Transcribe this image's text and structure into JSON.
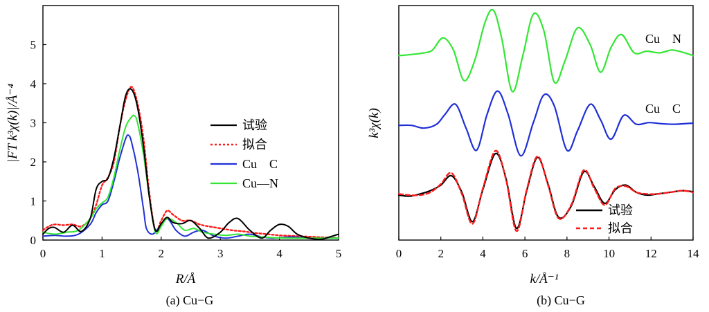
{
  "chart_data": [
    {
      "type": "line",
      "caption": "(a) Cu−G",
      "xlabel": "R/Å",
      "ylabel": "|FT k³χ(k)|/Å⁻⁴",
      "xlim": [
        0,
        5
      ],
      "ylim": [
        0,
        6
      ],
      "xticks": [
        0,
        1,
        2,
        3,
        4,
        5
      ],
      "yticks": [
        0,
        1,
        2,
        3,
        4,
        5
      ],
      "grid": false,
      "legend_position": "center-right",
      "series": [
        {
          "name": "试验",
          "color": "#000000",
          "dash": "solid",
          "x": [
            0.0,
            0.1,
            0.2,
            0.35,
            0.5,
            0.65,
            0.8,
            0.9,
            1.0,
            1.1,
            1.2,
            1.3,
            1.4,
            1.5,
            1.6,
            1.7,
            1.8,
            1.9,
            2.0,
            2.1,
            2.2,
            2.35,
            2.5,
            2.65,
            2.8,
            3.0,
            3.15,
            3.3,
            3.5,
            3.7,
            3.85,
            4.0,
            4.15,
            4.3,
            4.5,
            4.7,
            4.85,
            5.0
          ],
          "y": [
            0.15,
            0.3,
            0.32,
            0.2,
            0.38,
            0.22,
            0.55,
            1.3,
            1.5,
            1.58,
            2.1,
            2.9,
            3.7,
            3.85,
            3.4,
            2.4,
            1.1,
            0.25,
            0.42,
            0.58,
            0.45,
            0.42,
            0.5,
            0.3,
            0.05,
            0.2,
            0.45,
            0.55,
            0.25,
            0.05,
            0.25,
            0.4,
            0.35,
            0.15,
            0.05,
            0.02,
            0.08,
            0.15
          ]
        },
        {
          "name": "拟合",
          "color": "#ff1a1a",
          "dash": "dotted",
          "x": [
            0.0,
            0.1,
            0.2,
            0.35,
            0.5,
            0.65,
            0.8,
            0.9,
            1.0,
            1.1,
            1.2,
            1.3,
            1.4,
            1.5,
            1.6,
            1.7,
            1.8,
            1.9,
            2.0,
            2.1,
            2.2,
            2.35,
            2.5,
            2.65,
            2.8,
            3.0,
            3.2,
            3.4,
            3.6,
            3.8,
            4.0,
            4.3,
            4.6,
            5.0
          ],
          "y": [
            0.25,
            0.35,
            0.4,
            0.38,
            0.4,
            0.35,
            0.55,
            0.9,
            1.4,
            1.6,
            2.0,
            2.9,
            3.6,
            3.92,
            3.5,
            2.6,
            1.2,
            0.25,
            0.5,
            0.75,
            0.65,
            0.5,
            0.5,
            0.4,
            0.35,
            0.3,
            0.25,
            0.22,
            0.18,
            0.15,
            0.12,
            0.1,
            0.08,
            0.05
          ]
        },
        {
          "name": "Cu　C",
          "color": "#1f2fd6",
          "dash": "solid",
          "x": [
            0.0,
            0.2,
            0.4,
            0.6,
            0.8,
            0.9,
            1.0,
            1.1,
            1.2,
            1.3,
            1.4,
            1.45,
            1.5,
            1.6,
            1.7,
            1.75,
            1.85,
            1.95,
            2.1,
            2.25,
            2.4,
            2.55,
            2.7,
            2.9,
            3.1,
            3.3,
            3.5,
            3.7,
            3.9,
            4.2,
            4.5,
            5.0
          ],
          "y": [
            0.1,
            0.12,
            0.1,
            0.15,
            0.4,
            0.7,
            0.9,
            1.0,
            1.5,
            2.1,
            2.6,
            2.68,
            2.5,
            1.8,
            0.8,
            0.3,
            0.15,
            0.3,
            0.55,
            0.25,
            0.1,
            0.2,
            0.25,
            0.1,
            0.05,
            0.1,
            0.15,
            0.08,
            0.05,
            0.08,
            0.05,
            0.05
          ]
        },
        {
          "name": "Cu—N",
          "color": "#33e633",
          "dash": "solid",
          "x": [
            0.0,
            0.2,
            0.4,
            0.6,
            0.8,
            0.9,
            1.0,
            1.1,
            1.2,
            1.3,
            1.4,
            1.5,
            1.55,
            1.6,
            1.7,
            1.8,
            1.9,
            2.0,
            2.1,
            2.25,
            2.4,
            2.55,
            2.7,
            2.9,
            3.1,
            3.3,
            3.5,
            3.7,
            3.9,
            4.2,
            4.5,
            5.0
          ],
          "y": [
            0.2,
            0.15,
            0.2,
            0.25,
            0.55,
            0.8,
            0.95,
            1.1,
            1.6,
            2.3,
            2.9,
            3.15,
            3.18,
            3.0,
            2.2,
            1.1,
            0.2,
            0.35,
            0.55,
            0.45,
            0.25,
            0.3,
            0.2,
            0.15,
            0.12,
            0.15,
            0.1,
            0.08,
            0.06,
            0.05,
            0.05,
            0.05
          ]
        }
      ]
    },
    {
      "type": "line",
      "caption": "(b) Cu−G",
      "xlabel": "k/Å⁻¹",
      "ylabel": "k³χ(k)",
      "xlim": [
        0,
        14
      ],
      "xticks": [
        0,
        2,
        4,
        6,
        8,
        10,
        12,
        14
      ],
      "y_axis_ticks_shown": false,
      "grid": false,
      "legend_position": "lower-right",
      "curve_labels": [
        "Cu　N",
        "Cu　C"
      ],
      "series": [
        {
          "name": "Cu　N",
          "color": "#33e633",
          "dash": "solid",
          "offset": 2.4,
          "x": [
            0.0,
            0.6,
            1.2,
            1.6,
            2.1,
            2.6,
            3.1,
            3.6,
            4.1,
            4.5,
            4.9,
            5.4,
            5.9,
            6.4,
            6.9,
            7.4,
            7.9,
            8.5,
            9.1,
            9.6,
            10.1,
            10.6,
            11.2,
            11.8,
            12.4,
            13.0,
            13.6,
            14.0
          ],
          "y": [
            0.0,
            0.02,
            0.05,
            0.1,
            0.32,
            0.1,
            -0.45,
            -0.1,
            0.6,
            0.82,
            0.3,
            -0.65,
            0.0,
            0.75,
            0.45,
            -0.48,
            -0.1,
            0.5,
            0.2,
            -0.3,
            0.15,
            0.38,
            0.05,
            0.08,
            0.05,
            0.1,
            0.05,
            0.0
          ]
        },
        {
          "name": "Cu　C",
          "color": "#1f2fd6",
          "dash": "solid",
          "offset": 1.2,
          "x": [
            0.0,
            0.6,
            1.2,
            1.8,
            2.2,
            2.7,
            3.2,
            3.7,
            4.2,
            4.7,
            5.2,
            5.8,
            6.4,
            6.9,
            7.4,
            8.0,
            8.5,
            9.1,
            9.6,
            10.1,
            10.7,
            11.3,
            11.9,
            12.5,
            13.1,
            14.0
          ],
          "y": [
            0.0,
            0.0,
            -0.05,
            0.02,
            0.2,
            0.38,
            -0.05,
            -0.45,
            0.2,
            0.62,
            0.2,
            -0.55,
            0.05,
            0.55,
            0.35,
            -0.45,
            -0.1,
            0.38,
            0.1,
            -0.25,
            0.18,
            0.02,
            0.05,
            0.03,
            0.02,
            0.04
          ]
        },
        {
          "name": "试验",
          "color": "#000000",
          "dash": "solid",
          "offset": 0.0,
          "x": [
            0.0,
            0.5,
            1.0,
            1.5,
            2.0,
            2.5,
            3.0,
            3.5,
            4.0,
            4.6,
            5.1,
            5.6,
            6.1,
            6.6,
            7.1,
            7.6,
            8.2,
            8.8,
            9.3,
            9.8,
            10.3,
            10.8,
            11.3,
            11.8,
            12.3,
            12.9,
            13.5,
            14.0
          ],
          "y": [
            0.0,
            -0.02,
            0.02,
            0.08,
            0.18,
            0.35,
            0.05,
            -0.48,
            0.1,
            0.75,
            0.3,
            -0.6,
            0.1,
            0.68,
            0.2,
            -0.4,
            -0.2,
            0.42,
            0.15,
            -0.15,
            0.1,
            0.18,
            0.05,
            0.0,
            0.02,
            0.05,
            0.08,
            0.06
          ]
        },
        {
          "name": "拟合",
          "color": "#ff1a1a",
          "dash": "dashed",
          "offset": 0.0,
          "x": [
            0.0,
            0.5,
            1.0,
            1.5,
            2.0,
            2.5,
            3.0,
            3.5,
            4.0,
            4.6,
            5.1,
            5.6,
            6.1,
            6.6,
            7.1,
            7.6,
            8.2,
            8.8,
            9.3,
            9.8,
            10.3,
            10.8,
            11.3,
            11.8,
            12.3,
            12.9,
            13.5,
            14.0
          ],
          "y": [
            0.02,
            0.0,
            0.0,
            0.05,
            0.2,
            0.4,
            0.02,
            -0.52,
            0.12,
            0.8,
            0.28,
            -0.65,
            0.12,
            0.7,
            0.18,
            -0.42,
            -0.18,
            0.45,
            0.12,
            -0.18,
            0.12,
            0.16,
            0.05,
            0.02,
            0.02,
            0.05,
            0.08,
            0.05
          ]
        }
      ]
    }
  ]
}
